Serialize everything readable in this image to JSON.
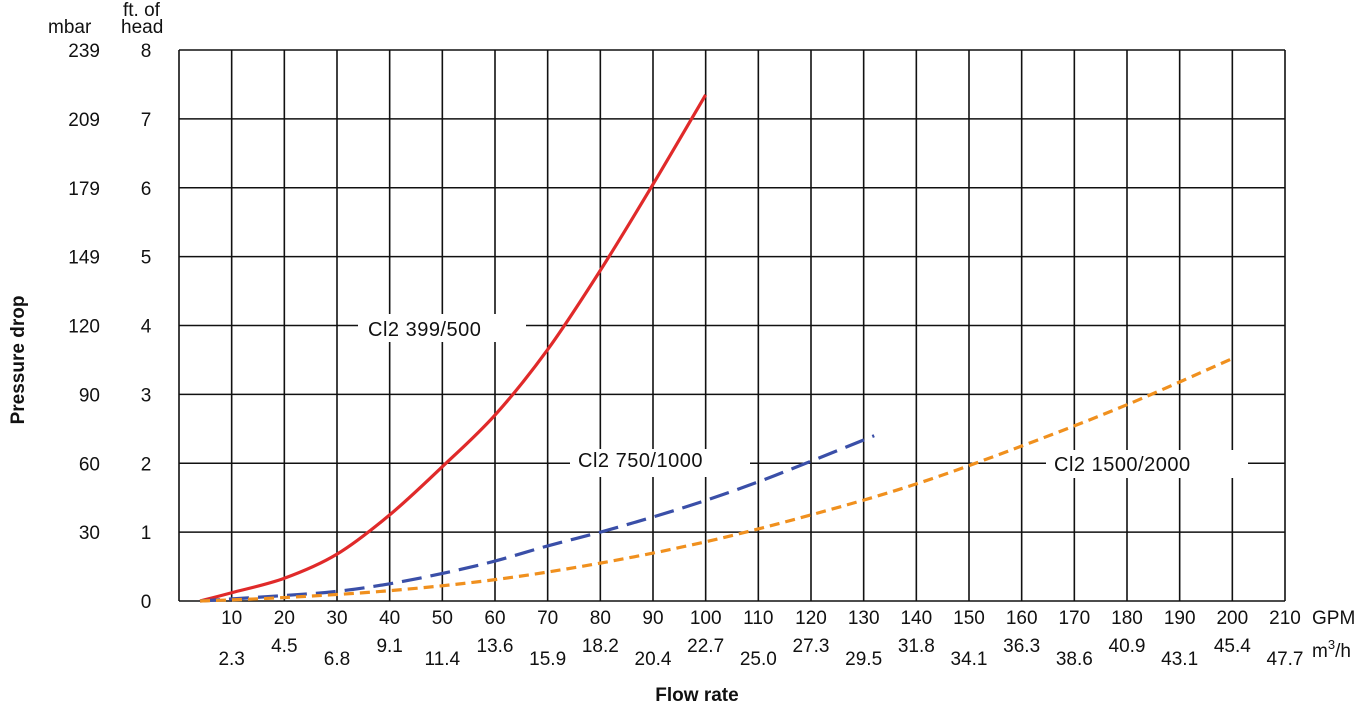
{
  "chart_data": {
    "type": "line",
    "xlabel": "Flow rate",
    "ylabel": "Pressure drop",
    "x_unit_gpm": "GPM",
    "x_unit_m3h_base": "m",
    "x_unit_m3h_sup": "3",
    "x_unit_m3h_tail": "/h",
    "y_unit_mbar": "mbar",
    "y_unit_ft_line1": "ft. of",
    "y_unit_ft_line2": "head",
    "xlim": [
      0,
      210
    ],
    "ylim": [
      0,
      8
    ],
    "grid": true,
    "x_ticks_gpm": [
      "10",
      "20",
      "30",
      "40",
      "50",
      "60",
      "70",
      "80",
      "90",
      "100",
      "110",
      "120",
      "130",
      "140",
      "150",
      "160",
      "170",
      "180",
      "190",
      "200",
      "210"
    ],
    "x_ticks_m3h": [
      "2.3",
      "4.5",
      "6.8",
      "9.1",
      "11.4",
      "13.6",
      "15.9",
      "18.2",
      "20.4",
      "22.7",
      "25.0",
      "27.3",
      "29.5",
      "31.8",
      "34.1",
      "36.3",
      "38.6",
      "40.9",
      "43.1",
      "45.4",
      "47.7"
    ],
    "y_ticks_ft": [
      "0",
      "1",
      "2",
      "3",
      "4",
      "5",
      "6",
      "7",
      "8"
    ],
    "y_ticks_mbar": [
      "",
      "30",
      "60",
      "90",
      "120",
      "149",
      "179",
      "209",
      "239"
    ],
    "series": [
      {
        "name": "Cl2 399/500",
        "color": "#e02a2a",
        "style": "solid",
        "x": [
          4,
          10,
          20,
          30,
          40,
          50,
          60,
          70,
          80,
          90,
          100
        ],
        "y": [
          0,
          0.12,
          0.33,
          0.68,
          1.25,
          1.95,
          2.7,
          3.65,
          4.8,
          6.05,
          7.35
        ]
      },
      {
        "name": "Cl2 750/1000",
        "color": "#3a4fa8",
        "style": "dashed",
        "x": [
          4,
          20,
          30,
          40,
          50,
          60,
          70,
          80,
          90,
          100,
          110,
          120,
          132
        ],
        "y": [
          0,
          0.08,
          0.14,
          0.25,
          0.4,
          0.58,
          0.8,
          1.0,
          1.22,
          1.46,
          1.73,
          2.03,
          2.4
        ]
      },
      {
        "name": "Cl2 1500/2000",
        "color": "#f0901e",
        "style": "dashed",
        "x": [
          4,
          20,
          40,
          60,
          80,
          100,
          120,
          140,
          160,
          180,
          200
        ],
        "y": [
          0,
          0.05,
          0.15,
          0.31,
          0.55,
          0.86,
          1.25,
          1.7,
          2.25,
          2.85,
          3.52
        ]
      }
    ],
    "series_labels": [
      "Cl2 399/500",
      "Cl2 750/1000",
      "Cl2 1500/2000"
    ]
  }
}
